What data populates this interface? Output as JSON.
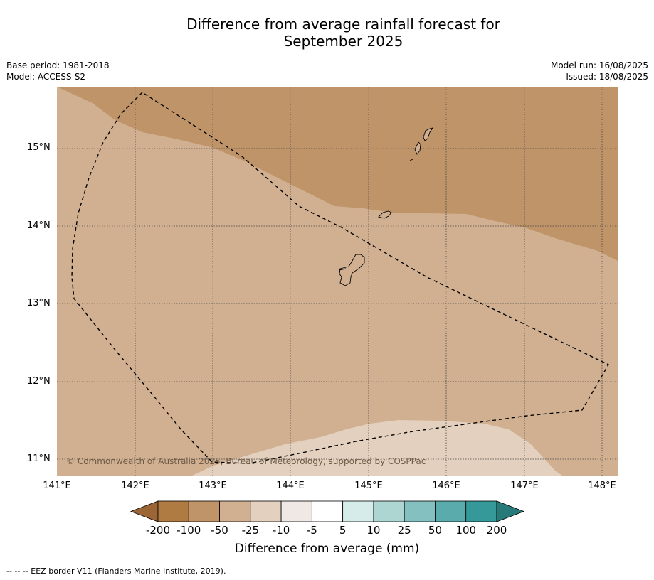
{
  "title_line1": "Difference from average rainfall forecast for",
  "title_line2": "September 2025",
  "meta": {
    "base_period": "Base period: 1981-2018",
    "model": "Model: ACCESS-S2",
    "model_run": "Model run: 16/08/2025",
    "issued": "Issued: 18/08/2025"
  },
  "map": {
    "lon_range": [
      141.0,
      148.2
    ],
    "lat_range": [
      10.8,
      15.8
    ],
    "lat_labels": [
      "15°N",
      "14°N",
      "13°N",
      "12°N",
      "11°N"
    ],
    "lon_labels": [
      "141°E",
      "142°E",
      "143°E",
      "144°E",
      "145°E",
      "146°E",
      "147°E",
      "148°E"
    ],
    "copyright": "© Commonwealth of Australia 2025, Bureau of Meteorology, supported by COSPPac"
  },
  "legend": {
    "colors": [
      "#9c6535",
      "#b07a43",
      "#c09469",
      "#d1b091",
      "#e3d0be",
      "#f0e8e4",
      "#ffffff",
      "#d6ecea",
      "#add6d3",
      "#85c0c0",
      "#5aabab",
      "#369999",
      "#277a79"
    ],
    "labels": [
      "-200",
      "-100",
      "-50",
      "-25",
      "-10",
      "-5",
      "5",
      "10",
      "25",
      "50",
      "100",
      "200"
    ],
    "title": "Difference from average (mm)"
  },
  "footnote": "--  --  -- EEZ border V11 (Flanders Marine Institute, 2019)."
}
